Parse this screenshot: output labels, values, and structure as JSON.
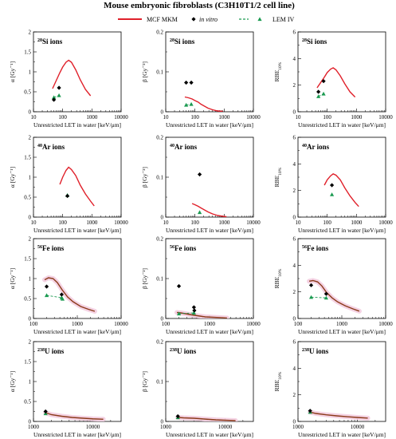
{
  "title": "Mouse embryonic fibroblasts (C3H10T1/2 cell line)",
  "legend": [
    {
      "label": "MCF MKM",
      "style": "line",
      "color": "#e0202a"
    },
    {
      "label": "in vitro",
      "style": "diamond",
      "color": "#000000"
    },
    {
      "label": "LEM IV",
      "style": "dash-triangle",
      "color": "#1a9a50"
    }
  ],
  "xlabel": "Unrestricted LET in water [keV/μm]",
  "colors": {
    "mkm": "#e0202a",
    "mkm_dark": "#8b3a1a",
    "invitro": "#000000",
    "lem": "#1a9a50",
    "band": "#f3cde0"
  },
  "chart_data": [
    {
      "type": "line",
      "row": 0,
      "col": 0,
      "ion": "Si",
      "mass": "28",
      "suffix": " ions",
      "ylabel": "α [Gy⁻¹]",
      "ylim": [
        0,
        2
      ],
      "yticks": [
        "0",
        "0.5",
        "1",
        "1.5",
        "2"
      ],
      "xlim": [
        10,
        10000
      ],
      "xlog": true,
      "xticks": [
        "10",
        "100",
        "1000",
        "10000"
      ],
      "mkm": {
        "x": [
          45,
          60,
          80,
          100,
          130,
          160,
          200,
          280,
          400,
          600,
          900
        ],
        "y": [
          0.58,
          0.78,
          0.98,
          1.12,
          1.24,
          1.29,
          1.24,
          1.05,
          0.8,
          0.56,
          0.4
        ]
      },
      "invitro": {
        "x": [
          50,
          75
        ],
        "y": [
          0.3,
          0.6
        ]
      },
      "lem": {
        "x": [
          50,
          75
        ],
        "y": [
          0.36,
          0.41
        ]
      }
    },
    {
      "type": "line",
      "row": 0,
      "col": 1,
      "ion": "Si",
      "mass": "28",
      "suffix": " ions",
      "ylabel": "β [Gy⁻²]",
      "ylim": [
        0,
        0.2
      ],
      "yticks": [
        "0",
        "0.1",
        "0.2"
      ],
      "xlim": [
        10,
        10000
      ],
      "xlog": true,
      "xticks": [
        "10",
        "100",
        "1000",
        "10000"
      ],
      "mkm": {
        "x": [
          45,
          60,
          80,
          100,
          130,
          160,
          200,
          280,
          400,
          600,
          900
        ],
        "y": [
          0.037,
          0.035,
          0.032,
          0.028,
          0.024,
          0.019,
          0.015,
          0.009,
          0.005,
          0.002,
          0.001
        ]
      },
      "invitro": {
        "x": [
          50,
          75
        ],
        "y": [
          0.073,
          0.073
        ]
      },
      "lem": {
        "x": [
          50,
          75
        ],
        "y": [
          0.017,
          0.019
        ]
      }
    },
    {
      "type": "line",
      "row": 0,
      "col": 2,
      "ion": "Si",
      "mass": "28",
      "suffix": " ions",
      "ylabel": "RBE",
      "ysub": "10%",
      "ylim": [
        0,
        6
      ],
      "yticks": [
        "0",
        "2",
        "4",
        "6"
      ],
      "xlim": [
        10,
        10000
      ],
      "xlog": true,
      "xticks": [
        "10",
        "100",
        "1000",
        "10000"
      ],
      "mkm": {
        "x": [
          45,
          60,
          80,
          100,
          130,
          160,
          200,
          280,
          400,
          600,
          900
        ],
        "y": [
          1.8,
          2.2,
          2.6,
          2.95,
          3.2,
          3.3,
          3.15,
          2.7,
          2.1,
          1.5,
          1.1
        ]
      },
      "invitro": {
        "x": [
          50,
          75
        ],
        "y": [
          1.5,
          2.3
        ]
      },
      "lem": {
        "x": [
          50,
          75
        ],
        "y": [
          1.15,
          1.35
        ]
      }
    },
    {
      "type": "line",
      "row": 1,
      "col": 0,
      "ion": "Ar",
      "mass": "40",
      "suffix": " ions",
      "ylabel": "α [Gy⁻¹]",
      "ylim": [
        0,
        2
      ],
      "yticks": [
        "0",
        "0.5",
        "1",
        "1.5",
        "2"
      ],
      "xlim": [
        10,
        10000
      ],
      "xlog": true,
      "xticks": [
        "10",
        "100",
        "1000",
        "10000"
      ],
      "mkm": {
        "x": [
          80,
          100,
          130,
          160,
          200,
          280,
          400,
          600,
          900,
          1200
        ],
        "y": [
          0.82,
          1.0,
          1.17,
          1.25,
          1.19,
          1.04,
          0.8,
          0.58,
          0.4,
          0.28
        ]
      },
      "invitro": {
        "x": [
          145
        ],
        "y": [
          0.53
        ]
      },
      "lem": {
        "x": [
          145
        ],
        "y": [
          0.55
        ]
      }
    },
    {
      "type": "line",
      "row": 1,
      "col": 1,
      "ion": "Ar",
      "mass": "40",
      "suffix": " ions",
      "ylabel": "β [Gy⁻²]",
      "ylim": [
        0,
        0.2
      ],
      "yticks": [
        "0",
        "0.1",
        "0.2"
      ],
      "xlim": [
        10,
        10000
      ],
      "xlog": true,
      "xticks": [
        "10",
        "100",
        "1000",
        "10000"
      ],
      "mkm": {
        "x": [
          80,
          100,
          130,
          160,
          200,
          280,
          400,
          600,
          900,
          1200
        ],
        "y": [
          0.034,
          0.031,
          0.027,
          0.023,
          0.019,
          0.013,
          0.008,
          0.004,
          0.002,
          0.001
        ]
      },
      "invitro": {
        "x": [
          145
        ],
        "y": [
          0.107
        ]
      },
      "lem": {
        "x": [
          145
        ],
        "y": [
          0.012
        ]
      }
    },
    {
      "type": "line",
      "row": 1,
      "col": 2,
      "ion": "Ar",
      "mass": "40",
      "suffix": " ions",
      "ylabel": "RBE",
      "ysub": "10%",
      "ylim": [
        0,
        6
      ],
      "yticks": [
        "0",
        "2",
        "4",
        "6"
      ],
      "xlim": [
        10,
        10000
      ],
      "xlog": true,
      "xticks": [
        "10",
        "100",
        "1000",
        "10000"
      ],
      "mkm": {
        "x": [
          80,
          100,
          130,
          160,
          200,
          280,
          400,
          600,
          900,
          1200
        ],
        "y": [
          2.4,
          2.8,
          3.1,
          3.25,
          3.15,
          2.8,
          2.2,
          1.6,
          1.1,
          0.8
        ]
      },
      "invitro": {
        "x": [
          145
        ],
        "y": [
          2.4
        ]
      },
      "lem": {
        "x": [
          145
        ],
        "y": [
          1.7
        ]
      }
    },
    {
      "type": "line",
      "row": 2,
      "col": 0,
      "ion": "Fe",
      "mass": "56",
      "suffix": " ions",
      "ylabel": "α [Gy⁻¹]",
      "ylim": [
        0,
        2
      ],
      "yticks": [
        "0",
        "0.5",
        "1",
        "1.5",
        "2"
      ],
      "xlim": [
        100,
        10000
      ],
      "xlog": true,
      "xticks": [
        "100",
        "1000",
        "10000"
      ],
      "mkm": {
        "x": [
          180,
          220,
          280,
          350,
          450,
          600,
          800,
          1200,
          1800,
          2500
        ],
        "y": [
          0.97,
          1.02,
          1.0,
          0.9,
          0.72,
          0.54,
          0.42,
          0.3,
          0.23,
          0.18
        ]
      },
      "invitro": {
        "x": [
          200,
          440
        ],
        "y": [
          0.8,
          0.6
        ]
      },
      "lem": {
        "x": [
          200,
          440,
          460
        ],
        "y": [
          0.58,
          0.52,
          0.49
        ]
      }
    },
    {
      "type": "line",
      "row": 2,
      "col": 1,
      "ion": "Fe",
      "mass": "56",
      "suffix": " ions",
      "ylabel": "β [Gy⁻²]",
      "ylim": [
        0,
        0.2
      ],
      "yticks": [
        "0",
        "0.1",
        "0.2"
      ],
      "xlim": [
        100,
        10000
      ],
      "xlog": true,
      "xticks": [
        "100",
        "1000",
        "10000"
      ],
      "mkm": {
        "x": [
          180,
          220,
          280,
          350,
          450,
          600,
          800,
          1200,
          1800,
          2500
        ],
        "y": [
          0.015,
          0.014,
          0.012,
          0.01,
          0.008,
          0.006,
          0.004,
          0.003,
          0.002,
          0.001
        ]
      },
      "invitro": {
        "x": [
          200,
          440,
          450
        ],
        "y": [
          0.081,
          0.028,
          0.02
        ]
      },
      "lem": {
        "x": [
          200,
          440
        ],
        "y": [
          0.012,
          0.014
        ]
      }
    },
    {
      "type": "line",
      "row": 2,
      "col": 2,
      "ion": "Fe",
      "mass": "56",
      "suffix": " ions",
      "ylabel": "RBE",
      "ysub": "10%",
      "ylim": [
        0,
        6
      ],
      "yticks": [
        "0",
        "2",
        "4",
        "6"
      ],
      "xlim": [
        100,
        10000
      ],
      "xlog": true,
      "xticks": [
        "100",
        "1000",
        "10000"
      ],
      "mkm": {
        "x": [
          180,
          220,
          280,
          350,
          450,
          600,
          800,
          1200,
          1800,
          2500
        ],
        "y": [
          2.8,
          2.85,
          2.75,
          2.45,
          1.95,
          1.55,
          1.25,
          0.95,
          0.72,
          0.55
        ]
      },
      "invitro": {
        "x": [
          200,
          440
        ],
        "y": [
          2.5,
          1.85
        ]
      },
      "lem": {
        "x": [
          200,
          440
        ],
        "y": [
          1.6,
          1.55
        ]
      }
    },
    {
      "type": "line",
      "row": 3,
      "col": 0,
      "ion": "U",
      "mass": "238",
      "suffix": " ions",
      "ylabel": "α [Gy⁻¹]",
      "ylim": [
        0,
        2
      ],
      "yticks": [
        "0",
        "0.5",
        "1",
        "1.5",
        "2"
      ],
      "xlim": [
        1000,
        30000
      ],
      "xlog": true,
      "xticks": [
        "1000",
        "10000"
      ],
      "mkm": {
        "x": [
          1600,
          2000,
          3000,
          4500,
          7000,
          10000,
          15000
        ],
        "y": [
          0.22,
          0.17,
          0.13,
          0.1,
          0.08,
          0.065,
          0.055
        ]
      },
      "invitro": {
        "x": [
          1600
        ],
        "y": [
          0.25
        ]
      },
      "lem": {
        "x": [
          1600
        ],
        "y": [
          0.2
        ]
      }
    },
    {
      "type": "line",
      "row": 3,
      "col": 1,
      "ion": "U",
      "mass": "238",
      "suffix": " ions",
      "ylabel": "β [Gy⁻²]",
      "ylim": [
        0,
        0.2
      ],
      "yticks": [
        "0",
        "0.1",
        "0.2"
      ],
      "xlim": [
        1000,
        30000
      ],
      "xlog": true,
      "xticks": [
        "1000",
        "10000"
      ],
      "mkm": {
        "x": [
          1600,
          2000,
          3000,
          4500,
          7000,
          10000,
          15000
        ],
        "y": [
          0.01,
          0.009,
          0.008,
          0.006,
          0.004,
          0.003,
          0.002
        ]
      },
      "invitro": {
        "x": [
          1600
        ],
        "y": [
          0.013
        ]
      },
      "lem": {
        "x": [
          1600
        ],
        "y": [
          0.01
        ]
      }
    },
    {
      "type": "line",
      "row": 3,
      "col": 2,
      "ion": "U",
      "mass": "238",
      "suffix": " ions",
      "ylabel": "RBE",
      "ysub": "10%",
      "ylim": [
        0,
        6
      ],
      "yticks": [
        "0",
        "2",
        "4",
        "6"
      ],
      "xlim": [
        1000,
        30000
      ],
      "xlog": true,
      "xticks": [
        "1000",
        "10000"
      ],
      "mkm": {
        "x": [
          1600,
          2000,
          3000,
          4500,
          7000,
          10000,
          15000
        ],
        "y": [
          0.7,
          0.6,
          0.5,
          0.42,
          0.35,
          0.3,
          0.25
        ]
      },
      "invitro": {
        "x": [
          1600
        ],
        "y": [
          0.8
        ]
      },
      "lem": {
        "x": [
          1600
        ],
        "y": [
          0.7
        ]
      }
    }
  ]
}
